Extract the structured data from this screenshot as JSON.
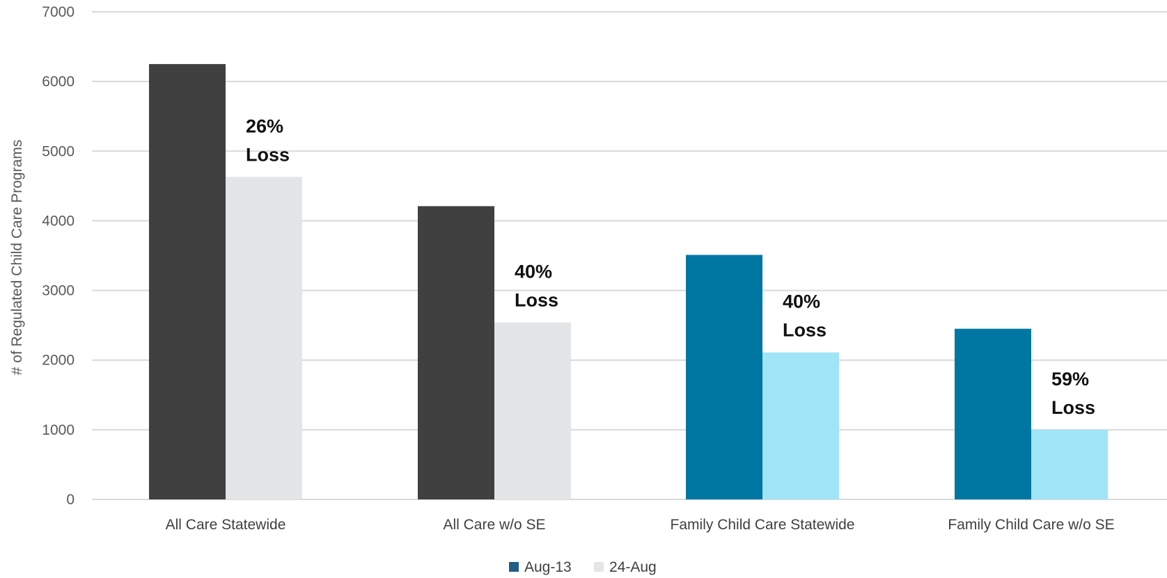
{
  "chart_data": {
    "type": "bar",
    "ylabel": "# of Regulated Child Care Programs",
    "ylim": [
      0,
      7000
    ],
    "yticks": [
      0,
      1000,
      2000,
      3000,
      4000,
      5000,
      6000,
      7000
    ],
    "grid": true,
    "legend_position": "bottom",
    "categories": [
      "All Care Statewide",
      "All Care w/o SE",
      "Family Child Care Statewide",
      "Family Child Care w/o SE"
    ],
    "series": [
      {
        "name": "Aug-13",
        "values": [
          6250,
          4210,
          3510,
          2450
        ],
        "colors": [
          "#404040",
          "#404040",
          "#0077A3",
          "#0077A3"
        ]
      },
      {
        "name": "24-Aug",
        "values": [
          4630,
          2540,
          2110,
          1000
        ],
        "colors": [
          "#E4E5E7",
          "#E4E5E7",
          "#A0E4F8",
          "#A0E4F8"
        ]
      }
    ],
    "annotations": [
      {
        "category_index": 0,
        "lines": [
          "26%",
          "Loss"
        ]
      },
      {
        "category_index": 1,
        "lines": [
          "40%",
          "Loss"
        ]
      },
      {
        "category_index": 2,
        "lines": [
          "40%",
          "Loss"
        ]
      },
      {
        "category_index": 3,
        "lines": [
          "59%",
          "Loss"
        ]
      }
    ],
    "legend_swatch_colors": [
      "#1F5F85",
      "#E4E5E7"
    ]
  }
}
